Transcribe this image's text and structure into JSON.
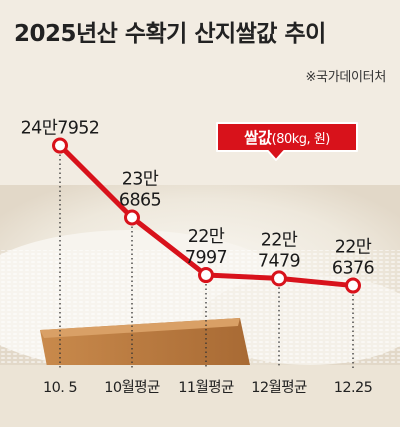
{
  "header": {
    "title": "2025년산 수확기 산지쌀값 추이",
    "source": "※국가데이터처"
  },
  "colors": {
    "line": "#d8121b",
    "legend_bg": "#d8121b",
    "text": "#1a1a1a",
    "background": "#f2ece2"
  },
  "chart_data": {
    "type": "line",
    "title": "2025년산 수확기 산지쌀값 추이",
    "categories": [
      "10. 5",
      "10월평균",
      "11월평균",
      "12월평균",
      "12.25"
    ],
    "series": [
      {
        "name": "쌀값(80kg, 원)",
        "values": [
          247952,
          236865,
          227997,
          227479,
          226376
        ],
        "labels": [
          [
            "24만7952"
          ],
          [
            "23만",
            "6865"
          ],
          [
            "22만",
            "7997"
          ],
          [
            "22만",
            "7479"
          ],
          [
            "22만",
            "6376"
          ]
        ]
      }
    ],
    "legend": {
      "bold": "쌀값",
      "rest": "(80kg, 원)",
      "placement": "top-right"
    },
    "ylim": [
      220000,
      250000
    ],
    "grid": false
  }
}
